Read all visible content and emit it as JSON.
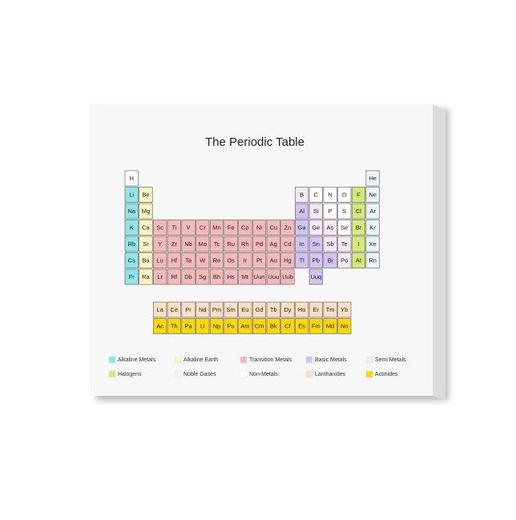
{
  "title": "The Periodic Table",
  "table": {
    "rows": [
      [
        "H",
        null,
        null,
        null,
        null,
        null,
        null,
        null,
        null,
        null,
        null,
        null,
        null,
        null,
        null,
        null,
        null,
        "He"
      ],
      [
        "Li",
        "Be",
        null,
        null,
        null,
        null,
        null,
        null,
        null,
        null,
        null,
        null,
        "B",
        "C",
        "N",
        "O",
        "F",
        "Ne"
      ],
      [
        "Na",
        "Mg",
        null,
        null,
        null,
        null,
        null,
        null,
        null,
        null,
        null,
        null,
        "Al",
        "Si",
        "P",
        "S",
        "Cl",
        "Ar"
      ],
      [
        "K",
        "Ca",
        "Sc",
        "Ti",
        "V",
        "Cr",
        "Mn",
        "Fe",
        "Co",
        "Ni",
        "Cu",
        "Zn",
        "Ga",
        "Ge",
        "As",
        "Se",
        "Br",
        "Kr"
      ],
      [
        "Rb",
        "Sr",
        "Y",
        "Zr",
        "Nb",
        "Mo",
        "Tc",
        "Ru",
        "Rh",
        "Pd",
        "Ag",
        "Cd",
        "In",
        "Sn",
        "Sb",
        "Te",
        "I",
        "Xe"
      ],
      [
        "Cs",
        "Ba",
        "Lu",
        "Hf",
        "Ta",
        "W",
        "Re",
        "Os",
        "Ir",
        "Pt",
        "Au",
        "Hg",
        "Tl",
        "Pb",
        "Bi",
        "Po",
        "At",
        "Rn"
      ],
      [
        "Fr",
        "Ra",
        "Lr",
        "Rf",
        "Db",
        "Sg",
        "Bh",
        "Hs",
        "Mt",
        "Uun",
        "Uuu",
        "Uub",
        null,
        "Uuq",
        null,
        null,
        null,
        null
      ]
    ]
  },
  "f_block": {
    "rows": [
      [
        "La",
        "Ce",
        "Pr",
        "Nd",
        "Pm",
        "Sm",
        "Eu",
        "Gd",
        "Tb",
        "Dy",
        "Ho",
        "Er",
        "Tm",
        "Yb"
      ],
      [
        "Ac",
        "Th",
        "Pa",
        "U",
        "Np",
        "Pu",
        "Am",
        "Cm",
        "Bk",
        "Cf",
        "Es",
        "Fm",
        "Md",
        "No"
      ]
    ]
  },
  "legend": [
    {
      "label": "Alkaline Metals",
      "color": "#8fe6e8"
    },
    {
      "label": "Alkaline Earth",
      "color": "#fbf3c2"
    },
    {
      "label": "Transition Metals",
      "color": "#f6b9b9"
    },
    {
      "label": "Basic Metals",
      "color": "#d2c4f2"
    },
    {
      "label": "Semi Metals",
      "color": "#f3e8f3"
    },
    {
      "label": "Halogens",
      "color": "#d3ea78"
    },
    {
      "label": "Noble Gases",
      "color": "#e9f4fb"
    },
    {
      "label": "Non-Metals",
      "color": "#ffffff"
    },
    {
      "label": "Lanthanides",
      "color": "#fde0c2"
    },
    {
      "label": "Actinides",
      "color": "#fcd80a"
    }
  ]
}
